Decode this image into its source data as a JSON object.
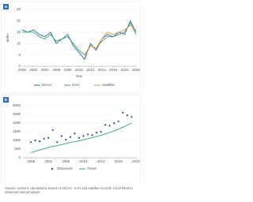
{
  "chart_data": [
    {
      "type": "line",
      "panel_label": "a",
      "xlabel": "Year",
      "ylabel": "Index",
      "x": [
        2000,
        2001,
        2002,
        2003,
        2004,
        2005,
        2006,
        2007,
        2008,
        2009,
        2010,
        2011,
        2012,
        2013,
        2014,
        2015,
        2016,
        2017,
        2018,
        2019,
        2020
      ],
      "xlim": [
        2000,
        2020
      ],
      "xticks": [
        2000,
        2002,
        2004,
        2006,
        2008,
        2010,
        2012,
        2014,
        2016,
        2018,
        2020
      ],
      "ylim": [
        0,
        25
      ],
      "yticks": [
        0,
        5,
        10,
        15,
        20,
        25
      ],
      "series": [
        {
          "name": "NOAA",
          "color": "#2f6db5",
          "values": [
            16,
            15,
            16,
            14,
            13,
            15,
            10,
            12,
            14,
            9,
            6,
            3,
            10,
            7,
            12,
            14,
            13,
            15,
            14,
            20,
            15
          ]
        },
        {
          "name": "UAH",
          "color": "#3aa86b",
          "values": [
            15,
            15,
            15,
            13,
            12,
            14,
            11,
            12,
            13,
            10,
            7,
            5,
            9,
            8,
            11,
            13,
            13,
            14,
            15,
            19,
            14
          ]
        },
        {
          "name": "Satellite",
          "color": "#ef8a3c",
          "values": [
            null,
            null,
            null,
            null,
            null,
            null,
            null,
            null,
            null,
            null,
            null,
            4,
            9,
            8,
            12,
            15,
            14,
            15,
            16,
            18,
            16
          ]
        }
      ]
    },
    {
      "type": "scatter",
      "panel_label": "b",
      "x": [
        1998,
        1999,
        2000,
        2001,
        2002,
        2003,
        2004,
        2005,
        2006,
        2007,
        2008,
        2009,
        2010,
        2011,
        2012,
        2013,
        2014,
        2015,
        2016,
        2017,
        2018,
        2019,
        2020,
        2021
      ],
      "xlim": [
        1996,
        2022
      ],
      "xticks": [
        1998,
        2002,
        2006,
        2010,
        2014,
        2018,
        2022
      ],
      "ylim": [
        0,
        3000
      ],
      "yticks": [
        0,
        500,
        1000,
        1500,
        2000,
        2500,
        3000
      ],
      "series": [
        {
          "name": "Observed",
          "color": "#1f4e9c",
          "mode": "markers",
          "values": [
            900,
            1000,
            950,
            1100,
            1150,
            1600,
            900,
            1250,
            1050,
            1200,
            1400,
            1150,
            1250,
            1350,
            1300,
            1450,
            1500,
            1900,
            1850,
            2000,
            2100,
            2600,
            2450,
            2350
          ]
        },
        {
          "name": "Trend",
          "color": "#2daa6a",
          "mode": "lines",
          "values": [
            300,
            380,
            450,
            520,
            600,
            650,
            700,
            760,
            820,
            880,
            930,
            980,
            1040,
            1100,
            1160,
            1230,
            1300,
            1380,
            1460,
            1550,
            1650,
            1760,
            1880,
            2000
          ]
        }
      ]
    }
  ],
  "caption": "Source: Author's calculations based on NOAA, UAH and satellite records; trend fitted to observed annual values."
}
